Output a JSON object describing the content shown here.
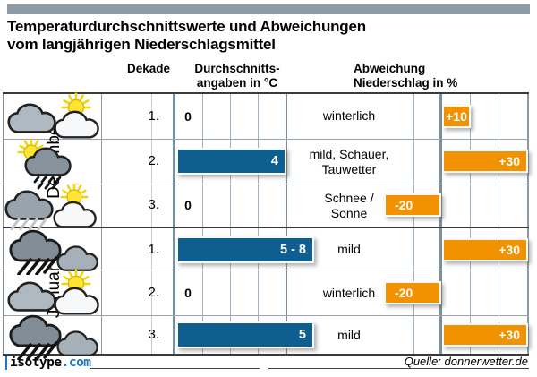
{
  "title": {
    "line1": "Temperaturdurchschnittswerte und Abweichungen",
    "line2": "vom langjährigen Niederschlagsmittel"
  },
  "columns": {
    "dekade": "Dekade",
    "temp_line1": "Durchschnitts-",
    "temp_line2": "angaben in °C",
    "precip_line1": "Abweichung",
    "precip_line2": "Niederschlag in %"
  },
  "months": [
    {
      "name": "Dezember"
    },
    {
      "name": "Januar"
    }
  ],
  "rows": [
    {
      "month": "Dezember",
      "dekade": "1.",
      "icon": "cloud-sun",
      "temp_label": "0",
      "temp_value": 0,
      "desc": [
        "winterlich",
        ""
      ],
      "precip_label": "+10",
      "precip_value": 10
    },
    {
      "month": "Dezember",
      "dekade": "2.",
      "icon": "sun-raincloud",
      "temp_label": "4",
      "temp_value": 4,
      "desc": [
        "mild, Schauer,",
        "Tauwetter"
      ],
      "precip_label": "+30",
      "precip_value": 30
    },
    {
      "month": "Dezember",
      "dekade": "3.",
      "icon": "raincloud-sun",
      "temp_label": "0",
      "temp_value": 0,
      "desc": [
        "Schnee /",
        "Sonne"
      ],
      "precip_label": "-20",
      "precip_value": -20
    },
    {
      "month": "Januar",
      "dekade": "1.",
      "icon": "raincloud-cloud",
      "temp_label": "5 - 8",
      "temp_value": 5,
      "desc": [
        "mild",
        ""
      ],
      "precip_label": "+30",
      "precip_value": 30
    },
    {
      "month": "Januar",
      "dekade": "2.",
      "icon": "cloud-sun",
      "temp_label": "0",
      "temp_value": 0,
      "desc": [
        "winterlich",
        ""
      ],
      "precip_label": "-20",
      "precip_value": -20
    },
    {
      "month": "Januar",
      "dekade": "3.",
      "icon": "raincloud-cloud",
      "temp_label": "5",
      "temp_value": 5,
      "desc": [
        "mild",
        ""
      ],
      "precip_label": "+30",
      "precip_value": 30
    }
  ],
  "footer": {
    "logo_text": "isotype",
    "logo_suffix": ".com",
    "source": "Quelle: donnerwetter.de"
  },
  "colors": {
    "temp_bar": "#0e5f90",
    "precip_bar": "#f39200",
    "header_bar": "#8c9ba5"
  },
  "chart_data": {
    "type": "bar",
    "orientation": "horizontal",
    "title": "Temperaturdurchschnittswerte und Abweichungen vom langjährigen Niederschlagsmittel",
    "categories": [
      "Dezember 1.",
      "Dezember 2.",
      "Dezember 3.",
      "Januar 1.",
      "Januar 2.",
      "Januar 3."
    ],
    "series": [
      {
        "name": "Durchschnittsangaben in °C",
        "values": [
          0,
          4,
          0,
          5,
          0,
          5
        ],
        "labels": [
          "0",
          "4",
          "0",
          "5 - 8",
          "0",
          "5"
        ],
        "color": "#0e5f90",
        "xlim": [
          0,
          7
        ]
      },
      {
        "name": "Abweichung Niederschlag in %",
        "values": [
          10,
          30,
          -20,
          30,
          -20,
          30
        ],
        "labels": [
          "+10",
          "+30",
          "-20",
          "+30",
          "-20",
          "+30"
        ],
        "color": "#f39200",
        "xlim": [
          -20,
          30
        ]
      }
    ],
    "annotations": [
      "winterlich",
      "mild, Schauer, Tauwetter",
      "Schnee / Sonne",
      "mild",
      "winterlich",
      "mild"
    ],
    "weather_icons": [
      "cloud-sun",
      "sun-raincloud",
      "raincloud-sun",
      "raincloud-cloud",
      "cloud-sun",
      "raincloud-cloud"
    ],
    "grid": true,
    "legend_position": "none"
  }
}
